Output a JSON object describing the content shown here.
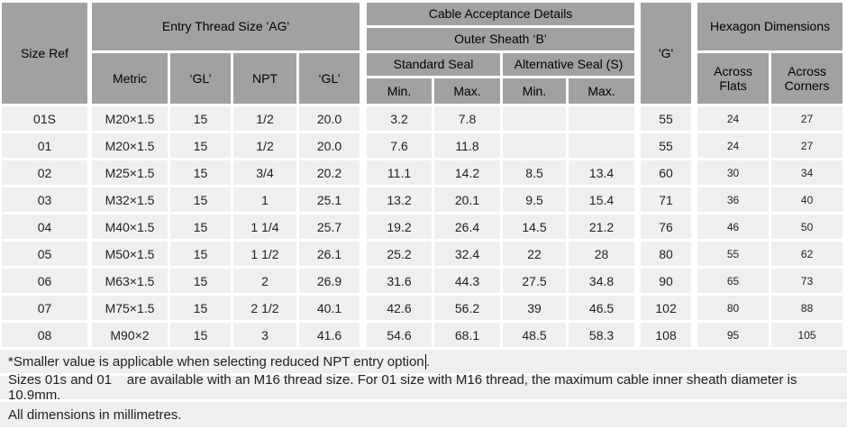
{
  "table": {
    "header": {
      "size_ref": "Size Ref",
      "entry_thread": "Entry Thread Size 'AG'",
      "metric": "Metric",
      "gl1": "‘GL’",
      "npt": "NPT",
      "gl2": "‘GL’",
      "cable_acceptance": "Cable Acceptance Details",
      "outer_sheath": "Outer Sheath ‘B’",
      "standard_seal": "Standard Seal",
      "alternative_seal": "Alternative Seal (S)",
      "min_standard": "Min.",
      "max_standard": "Max.",
      "min_alternative": "Min.",
      "max_alternative": "Max.",
      "g": "'G'",
      "hexagon": "Hexagon Dimensions",
      "across_flats": "Across Flats",
      "across_corners": "Across Corners"
    },
    "rows": [
      [
        "01S",
        "M20×1.5",
        "15",
        "1/2",
        "20.0",
        "3.2",
        "7.8",
        "",
        "",
        "55",
        "24",
        "27"
      ],
      [
        "01",
        "M20×1.5",
        "15",
        "1/2",
        "20.0",
        "7.6",
        "11.8",
        "",
        "",
        "55",
        "24",
        "27"
      ],
      [
        "02",
        "M25×1.5",
        "15",
        "3/4",
        "20.2",
        "11.1",
        "14.2",
        "8.5",
        "13.4",
        "60",
        "30",
        "34"
      ],
      [
        "03",
        "M32×1.5",
        "15",
        "1",
        "25.1",
        "13.2",
        "20.1",
        "9.5",
        "15.4",
        "71",
        "36",
        "40"
      ],
      [
        "04",
        "M40×1.5",
        "15",
        "1 1/4",
        "25.7",
        "19.2",
        "26.4",
        "14.5",
        "21.2",
        "76",
        "46",
        "50"
      ],
      [
        "05",
        "M50×1.5",
        "15",
        "1 1/2",
        "26.1",
        "25.2",
        "32.4",
        "22",
        "28",
        "80",
        "55",
        "62"
      ],
      [
        "06",
        "M63×1.5",
        "15",
        "2",
        "26.9",
        "31.6",
        "44.3",
        "27.5",
        "34.8",
        "90",
        "65",
        "73"
      ],
      [
        "07",
        "M75×1.5",
        "15",
        "2 1/2",
        "40.1",
        "42.6",
        "56.2",
        "39",
        "46.5",
        "102",
        "80",
        "88"
      ],
      [
        "08",
        "M90×2",
        "15",
        "3",
        "41.6",
        "54.6",
        "68.1",
        "48.5",
        "58.3",
        "108",
        "95",
        "105"
      ]
    ]
  },
  "notes": {
    "npt_note_text": "*Smaller value is applicable when selecting reduced NPT entry option",
    "npt_note_tail": ".",
    "m16_note": "Sizes 01s and 01    are available with an M16 thread size. For 01 size with M16 thread, the maximum cable inner sheath diameter is 10.9mm.",
    "units_note": "All dimensions in millimetres."
  },
  "colors": {
    "header_bg": "#a1a1a1",
    "row_bg": "#f0efed",
    "gap": "#ffffff",
    "text": "#1f1f1f"
  }
}
